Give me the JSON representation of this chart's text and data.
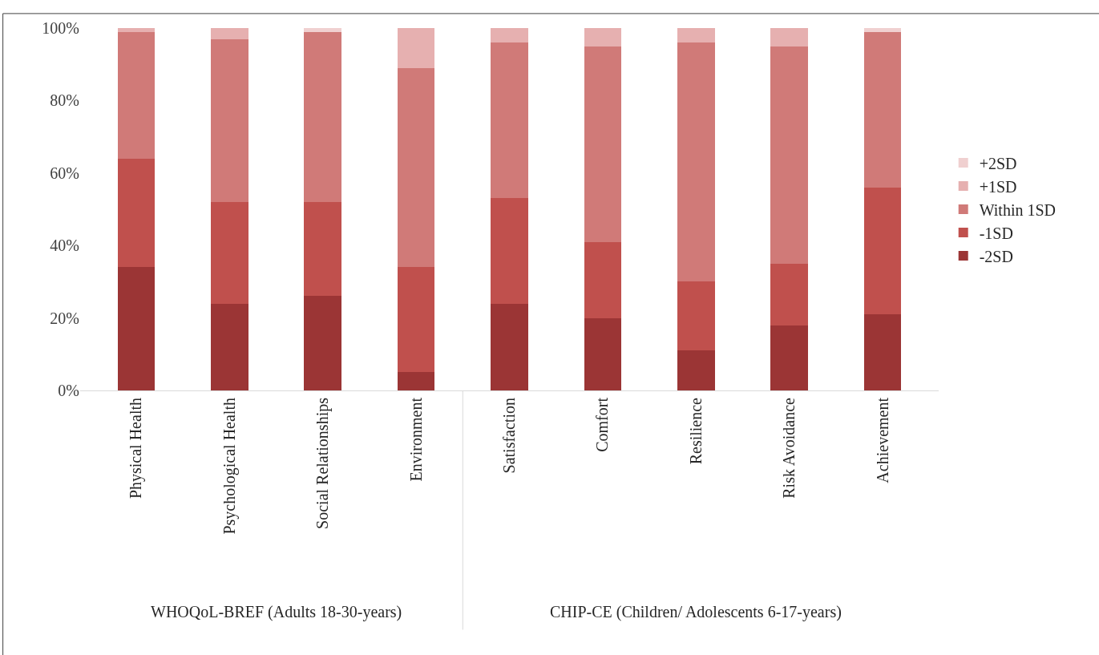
{
  "chart_data": {
    "type": "bar",
    "stacked": true,
    "categories": [
      "Physical Health",
      "Psychological Health",
      "Social Relationships",
      "Environment",
      "Satisfaction",
      "Comfort",
      "Resilience",
      "Risk Avoidance",
      "Achievement"
    ],
    "series": [
      {
        "name": "-2SD",
        "color": "#9b3535",
        "values": [
          34,
          24,
          26,
          5,
          24,
          20,
          11,
          18,
          21
        ]
      },
      {
        "name": "-1SD",
        "color": "#c0504d",
        "values": [
          30,
          28,
          26,
          29,
          29,
          21,
          19,
          17,
          35
        ]
      },
      {
        "name": "Within 1SD",
        "color": "#d07a78",
        "values": [
          35,
          45,
          47,
          55,
          43,
          54,
          66,
          60,
          43
        ]
      },
      {
        "name": "+1SD",
        "color": "#e6b0b0",
        "values": [
          1,
          3,
          0,
          11,
          4,
          5,
          4,
          5,
          0
        ]
      },
      {
        "name": "+2SD",
        "color": "#f0d0d0",
        "values": [
          0,
          0,
          1,
          0,
          0,
          0,
          0,
          0,
          1
        ]
      }
    ],
    "ylim": [
      0,
      100
    ],
    "yticks": [
      {
        "value": 0,
        "label": "0%"
      },
      {
        "value": 20,
        "label": "20%"
      },
      {
        "value": 40,
        "label": "40%"
      },
      {
        "value": 60,
        "label": "60%"
      },
      {
        "value": 80,
        "label": "80%"
      },
      {
        "value": 100,
        "label": "100%"
      }
    ],
    "grid": false,
    "legend": "right",
    "annotations": [
      "WHOQoL-BREF (Adults 18-30-years)",
      "CHIP-CE (Children/ Adolescents 6-17-years)"
    ]
  }
}
